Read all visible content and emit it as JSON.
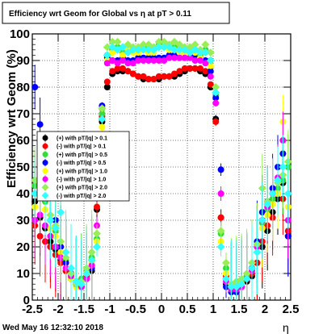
{
  "chart_data": {
    "type": "scatter",
    "title": "Efficiency wrt Geom for Global vs   η at pT > 0.11",
    "xlabel": "η",
    "ylabel": "Efficiency wrt Geom (%)",
    "xlim": [
      -2.5,
      2.5
    ],
    "ylim": [
      0,
      100
    ],
    "x_ticks": [
      "-2.5",
      "-2",
      "-1.5",
      "-1",
      "-0.5",
      "0",
      "0.5",
      "1",
      "1.5",
      "2",
      "2.5"
    ],
    "y_ticks": [
      "0",
      "10",
      "20",
      "30",
      "40",
      "50",
      "60",
      "70",
      "80",
      "90",
      "100"
    ],
    "grid": true,
    "legend_position": "left",
    "series": [
      {
        "name": "(+) with pT/|q| > 0.1",
        "color": "#000000",
        "marker": "circle",
        "x": [
          -2.45,
          -2.35,
          -2.25,
          -2.15,
          -2.05,
          -1.95,
          -1.85,
          -1.75,
          -1.65,
          -1.55,
          -1.45,
          -1.35,
          -1.25,
          -1.15,
          -1.05,
          -0.95,
          -0.85,
          -0.75,
          -0.65,
          -0.55,
          -0.45,
          -0.35,
          -0.25,
          -0.15,
          -0.05,
          0.05,
          0.15,
          0.25,
          0.35,
          0.45,
          0.55,
          0.65,
          0.75,
          0.85,
          0.95,
          1.05,
          1.15,
          1.25,
          1.35,
          1.45,
          1.55,
          1.65,
          1.75,
          1.85,
          1.95,
          2.05,
          2.15,
          2.25,
          2.35,
          2.45
        ],
        "y": [
          37,
          31,
          27,
          22,
          19,
          15,
          11,
          8,
          6,
          5,
          8,
          11,
          34,
          67,
          80,
          85,
          86,
          86,
          86,
          85,
          84,
          83,
          83,
          83,
          83,
          84,
          84,
          84,
          85,
          86,
          87,
          87,
          86,
          85,
          80,
          68,
          31,
          6,
          4,
          4,
          5,
          7,
          9,
          14,
          20,
          26,
          33,
          38,
          44,
          24
        ]
      },
      {
        "name": "(-) with pT/|q| > 0.1",
        "color": "#ff0000",
        "marker": "circle",
        "x": [
          -2.45,
          -2.35,
          -2.25,
          -2.15,
          -2.05,
          -1.95,
          -1.85,
          -1.75,
          -1.65,
          -1.55,
          -1.45,
          -1.35,
          -1.25,
          -1.15,
          -1.05,
          -0.95,
          -0.85,
          -0.75,
          -0.65,
          -0.55,
          -0.45,
          -0.35,
          -0.25,
          -0.15,
          -0.05,
          0.05,
          0.15,
          0.25,
          0.35,
          0.45,
          0.55,
          0.65,
          0.75,
          0.85,
          0.95,
          1.05,
          1.15,
          1.25,
          1.35,
          1.45,
          1.55,
          1.65,
          1.75,
          1.85,
          1.95,
          2.05,
          2.15,
          2.25,
          2.35,
          2.45
        ],
        "y": [
          28,
          24,
          22,
          20,
          17,
          14,
          11,
          9,
          7,
          6,
          9,
          15,
          35,
          69,
          82,
          86,
          87,
          87,
          86,
          85,
          84,
          84,
          83,
          83,
          84,
          84,
          84,
          85,
          86,
          87,
          87,
          87,
          87,
          86,
          81,
          67,
          31,
          9,
          5,
          5,
          6,
          8,
          10,
          14,
          22,
          28,
          31,
          40,
          38,
          26
        ]
      },
      {
        "name": "(+) with pT/|q| > 0.5",
        "color": "#33dd33",
        "marker": "circle",
        "x": [
          -2.45,
          -2.35,
          -2.25,
          -2.15,
          -2.05,
          -1.95,
          -1.85,
          -1.75,
          -1.65,
          -1.55,
          -1.45,
          -1.35,
          -1.25,
          -1.15,
          -1.05,
          -0.95,
          -0.85,
          -0.75,
          -0.65,
          -0.55,
          -0.45,
          -0.35,
          -0.25,
          -0.15,
          -0.05,
          0.05,
          0.15,
          0.25,
          0.35,
          0.45,
          0.55,
          0.65,
          0.75,
          0.85,
          0.95,
          1.05,
          1.15,
          1.25,
          1.35,
          1.45,
          1.55,
          1.65,
          1.75,
          1.85,
          1.95,
          2.05,
          2.15,
          2.25,
          2.35,
          2.45
        ],
        "y": [
          43,
          44,
          37,
          30,
          26,
          20,
          15,
          10,
          7,
          8,
          11,
          16,
          23,
          70,
          92,
          94,
          95,
          93,
          95,
          94,
          94,
          95,
          94,
          94,
          96,
          96,
          95,
          95,
          94,
          93,
          94,
          94,
          92,
          94,
          90,
          77,
          25,
          12,
          5,
          6,
          7,
          9,
          12,
          20,
          29,
          34,
          38,
          42,
          45,
          50
        ]
      },
      {
        "name": "(-) with pT/|q| > 0.5",
        "color": "#0000ff",
        "marker": "circle",
        "x": [
          -2.45,
          -2.35,
          -2.25,
          -2.15,
          -2.05,
          -1.95,
          -1.85,
          -1.75,
          -1.65,
          -1.55,
          -1.45,
          -1.35,
          -1.25,
          -1.15,
          -1.05,
          -0.95,
          -0.85,
          -0.75,
          -0.65,
          -0.55,
          -0.45,
          -0.35,
          -0.25,
          -0.15,
          -0.05,
          0.05,
          0.15,
          0.25,
          0.35,
          0.45,
          0.55,
          0.65,
          0.75,
          0.85,
          0.95,
          1.05,
          1.15,
          1.25,
          1.35,
          1.45,
          1.55,
          1.65,
          1.75,
          1.85,
          1.95,
          2.05,
          2.15,
          2.25,
          2.35,
          2.45
        ],
        "y": [
          80,
          66,
          50,
          40,
          30,
          20,
          14,
          10,
          6,
          5,
          8,
          12,
          50,
          73,
          91,
          90,
          90,
          91,
          90,
          90,
          91,
          91,
          91,
          91,
          91,
          91,
          92,
          92,
          92,
          92,
          92,
          91,
          91,
          90,
          86,
          76,
          49,
          5,
          3,
          3,
          5,
          8,
          12,
          22,
          33,
          37,
          42,
          50,
          55,
          24
        ]
      },
      {
        "name": "(+) with pT/|q| > 1.0",
        "color": "#ffff00",
        "marker": "circle",
        "x": [
          -2.45,
          -2.35,
          -2.25,
          -2.15,
          -2.05,
          -1.95,
          -1.85,
          -1.75,
          -1.65,
          -1.55,
          -1.45,
          -1.35,
          -1.25,
          -1.15,
          -1.05,
          -0.95,
          -0.85,
          -0.75,
          -0.65,
          -0.55,
          -0.45,
          -0.35,
          -0.25,
          -0.15,
          -0.05,
          0.05,
          0.15,
          0.25,
          0.35,
          0.45,
          0.55,
          0.65,
          0.75,
          0.85,
          0.95,
          1.05,
          1.15,
          1.25,
          1.35,
          1.45,
          1.55,
          1.65,
          1.75,
          1.85,
          1.95,
          2.05,
          2.15,
          2.25,
          2.35,
          2.45
        ],
        "y": [
          35,
          40,
          34,
          27,
          24,
          18,
          12,
          8,
          5,
          6,
          10,
          14,
          22,
          65,
          90,
          93,
          94,
          92,
          94,
          93,
          93,
          94,
          93,
          93,
          95,
          95,
          94,
          94,
          93,
          92,
          93,
          93,
          91,
          93,
          88,
          74,
          22,
          10,
          4,
          5,
          6,
          8,
          11,
          18,
          27,
          32,
          36,
          40,
          67,
          35
        ]
      },
      {
        "name": "(-) with pT/|q| > 1.0",
        "color": "#ff00ff",
        "marker": "circle",
        "x": [
          -2.45,
          -2.35,
          -2.25,
          -2.15,
          -2.05,
          -1.95,
          -1.85,
          -1.75,
          -1.65,
          -1.55,
          -1.45,
          -1.35,
          -1.25,
          -1.15,
          -1.05,
          -0.95,
          -0.85,
          -0.75,
          -0.65,
          -0.55,
          -0.45,
          -0.35,
          -0.25,
          -0.15,
          -0.05,
          0.05,
          0.15,
          0.25,
          0.35,
          0.45,
          0.55,
          0.65,
          0.75,
          0.85,
          0.95,
          1.05,
          1.15,
          1.25,
          1.35,
          1.45,
          1.55,
          1.65,
          1.75,
          1.85,
          1.95,
          2.05,
          2.15,
          2.25,
          2.35,
          2.45
        ],
        "y": [
          30,
          32,
          28,
          24,
          20,
          16,
          12,
          9,
          6,
          5,
          8,
          13,
          28,
          72,
          89,
          90,
          89,
          90,
          89,
          89,
          90,
          90,
          90,
          90,
          90,
          90,
          91,
          91,
          91,
          91,
          91,
          90,
          90,
          89,
          84,
          74,
          40,
          7,
          4,
          4,
          5,
          8,
          11,
          20,
          30,
          35,
          40,
          46,
          60,
          30
        ]
      },
      {
        "name": "(+) with pT/|q| > 2.0",
        "color": "#99ee55",
        "marker": "diamond",
        "x": [
          -2.45,
          -2.35,
          -2.25,
          -2.15,
          -2.05,
          -1.95,
          -1.85,
          -1.75,
          -1.65,
          -1.55,
          -1.45,
          -1.35,
          -1.25,
          -1.15,
          -1.05,
          -0.95,
          -0.85,
          -0.75,
          -0.65,
          -0.55,
          -0.45,
          -0.35,
          -0.25,
          -0.15,
          -0.05,
          0.05,
          0.15,
          0.25,
          0.35,
          0.45,
          0.55,
          0.65,
          0.75,
          0.85,
          0.95,
          1.05,
          1.15,
          1.25,
          1.35,
          1.45,
          1.55,
          1.65,
          1.75,
          1.85,
          1.95,
          2.05,
          2.15,
          2.25,
          2.35,
          2.45
        ],
        "y": [
          45,
          46,
          40,
          32,
          28,
          22,
          16,
          10,
          6,
          7,
          12,
          18,
          25,
          72,
          95,
          97,
          97,
          95,
          96,
          95,
          95,
          96,
          96,
          95,
          97,
          97,
          96,
          97,
          96,
          95,
          95,
          96,
          94,
          96,
          93,
          80,
          26,
          14,
          6,
          7,
          8,
          10,
          14,
          21,
          42,
          37,
          40,
          44,
          47,
          52
        ]
      },
      {
        "name": "(-) with pT/|q| > 2.0",
        "color": "#33ffff",
        "marker": "diamond",
        "x": [
          -2.45,
          -2.35,
          -2.25,
          -2.15,
          -2.05,
          -1.95,
          -1.85,
          -1.75,
          -1.65,
          -1.55,
          -1.45,
          -1.35,
          -1.25,
          -1.15,
          -1.05,
          -0.95,
          -0.85,
          -0.75,
          -0.65,
          -0.55,
          -0.45,
          -0.35,
          -0.25,
          -0.15,
          -0.05,
          0.05,
          0.15,
          0.25,
          0.35,
          0.45,
          0.55,
          0.65,
          0.75,
          0.85,
          0.95,
          1.05,
          1.15,
          1.25,
          1.35,
          1.45,
          1.55,
          1.65,
          1.75,
          1.85,
          1.95,
          2.05,
          2.15,
          2.25,
          2.35,
          2.45
        ],
        "y": [
          40,
          42,
          38,
          30,
          27,
          33,
          18,
          12,
          7,
          6,
          10,
          15,
          20,
          68,
          92,
          95,
          94,
          95,
          93,
          94,
          94,
          94,
          94,
          94,
          95,
          95,
          95,
          94,
          94,
          94,
          93,
          94,
          93,
          93,
          90,
          78,
          20,
          8,
          5,
          5,
          6,
          8,
          12,
          18,
          30,
          36,
          40,
          45,
          50,
          40
        ]
      }
    ]
  },
  "canvas": {
    "datestamp": "Wed May 16 12:32:10 2018"
  }
}
